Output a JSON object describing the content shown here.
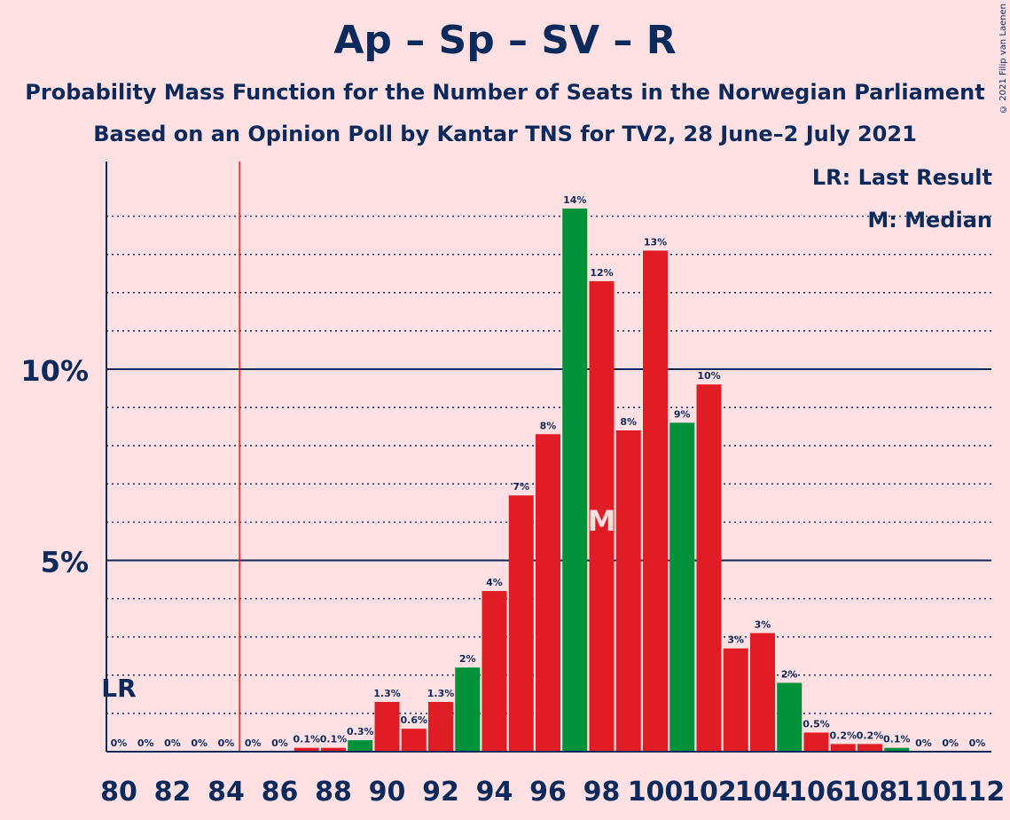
{
  "title": "Ap – Sp – SV – R",
  "subtitle": "Probability Mass Function for the Number of Seats in the Norwegian Parliament",
  "subtitle2": "Based on an Opinion Poll by Kantar TNS for TV2, 28 June–2 July 2021",
  "copyright": "© 2021 Filip van Laenen",
  "legend": {
    "last_result": "LR: Last Result",
    "median": "M: Median"
  },
  "colors": {
    "background": "#ffe0e3",
    "red": "#e01c24",
    "green": "#00913a",
    "navy": "#0c2a5c",
    "lr_line": "#e01c24"
  },
  "chart_data": {
    "type": "bar",
    "seats": [
      80,
      81,
      82,
      83,
      84,
      85,
      86,
      87,
      88,
      89,
      90,
      91,
      92,
      93,
      94,
      95,
      96,
      97,
      98,
      99,
      100,
      101,
      102,
      103,
      104,
      105,
      106,
      107,
      108,
      109,
      110,
      111,
      112
    ],
    "values": [
      0,
      0,
      0,
      0,
      0,
      0,
      0,
      0.1,
      0.1,
      0.3,
      1.3,
      0.6,
      1.3,
      2.2,
      4.2,
      6.7,
      8.3,
      14.2,
      12.3,
      8.4,
      13.1,
      8.6,
      9.6,
      2.7,
      3.1,
      1.8,
      0.5,
      0.2,
      0.2,
      0.1,
      0,
      0,
      0
    ],
    "data_labels": [
      "0%",
      "0%",
      "0%",
      "0%",
      "0%",
      "0%",
      "0%",
      "0.1%",
      "0.1%",
      "0.3%",
      "1.3%",
      "0.6%",
      "1.3%",
      "2%",
      "4%",
      "7%",
      "8%",
      "14%",
      "12%",
      "8%",
      "13%",
      "9%",
      "10%",
      "3%",
      "3%",
      "2%",
      "0.5%",
      "0.2%",
      "0.2%",
      "0.1%",
      "0%",
      "0%",
      "0%"
    ],
    "bar_colors": [
      "red",
      "red",
      "red",
      "red",
      "red",
      "red",
      "red",
      "red",
      "red",
      "green",
      "red",
      "red",
      "red",
      "green",
      "red",
      "red",
      "red",
      "green",
      "red",
      "red",
      "red",
      "green",
      "red",
      "red",
      "red",
      "green",
      "red",
      "red",
      "red",
      "green",
      "red",
      "red",
      "red"
    ],
    "x_tick_labels": [
      "80",
      "82",
      "84",
      "86",
      "88",
      "90",
      "92",
      "94",
      "96",
      "98",
      "100",
      "102",
      "104",
      "106",
      "108",
      "110",
      "112"
    ],
    "y_tick_labels": [
      {
        "value": 5,
        "label": "5%"
      },
      {
        "value": 10,
        "label": "10%"
      }
    ],
    "ylim": [
      0,
      15.5
    ],
    "last_result": {
      "seat": 84.5,
      "label": "LR"
    },
    "median": {
      "seat": 98,
      "label": "M"
    },
    "grid": true
  }
}
